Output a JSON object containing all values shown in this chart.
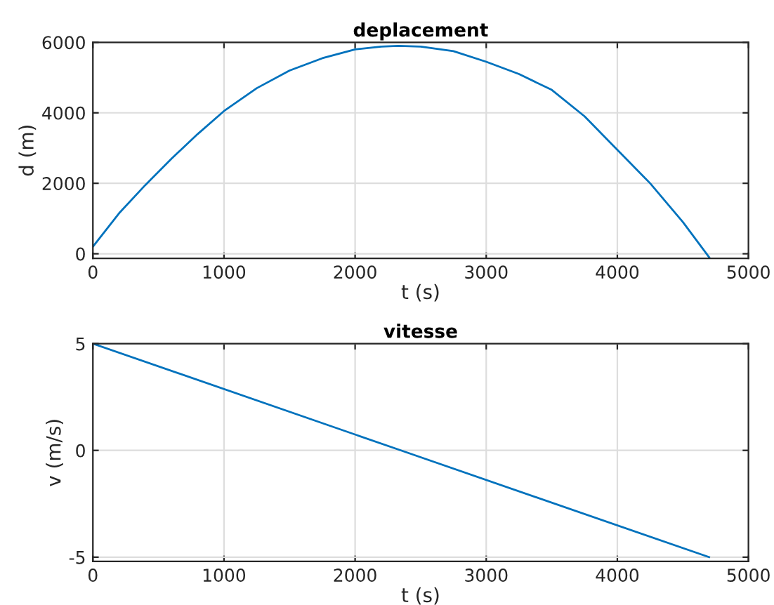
{
  "chart_data": [
    {
      "type": "line",
      "title": "deplacement",
      "xlabel": "t (s)",
      "ylabel": "d (m)",
      "xlim": [
        0,
        5000
      ],
      "xticks": [
        0,
        1000,
        2000,
        3000,
        4000,
        5000
      ],
      "ylim": [
        -130,
        6000
      ],
      "yticks": [
        0,
        2000,
        4000,
        6000
      ],
      "grid": true,
      "marker": "none",
      "line_style": "solid",
      "series": [
        {
          "color": "#0072bd",
          "x": [
            0,
            200,
            400,
            600,
            800,
            1000,
            1250,
            1500,
            1750,
            2000,
            2200,
            2330,
            2500,
            2750,
            3000,
            3250,
            3500,
            3750,
            4000,
            4250,
            4500,
            4700
          ],
          "values": [
            200,
            1150,
            1950,
            2700,
            3400,
            4050,
            4700,
            5200,
            5550,
            5800,
            5880,
            5900,
            5880,
            5750,
            5450,
            5100,
            4650,
            3900,
            2950,
            2000,
            900,
            -100
          ]
        }
      ]
    },
    {
      "type": "line",
      "title": "vitesse",
      "xlabel": "t (s)",
      "ylabel": "v (m/s)",
      "xlim": [
        0,
        5000
      ],
      "xticks": [
        0,
        1000,
        2000,
        3000,
        4000,
        5000
      ],
      "ylim": [
        -5.2,
        5
      ],
      "yticks": [
        -5,
        0,
        5
      ],
      "grid": true,
      "marker": "none",
      "line_style": "solid",
      "series": [
        {
          "color": "#0072bd",
          "x": [
            0,
            2350,
            4700
          ],
          "values": [
            5,
            0,
            -5
          ]
        }
      ]
    }
  ]
}
